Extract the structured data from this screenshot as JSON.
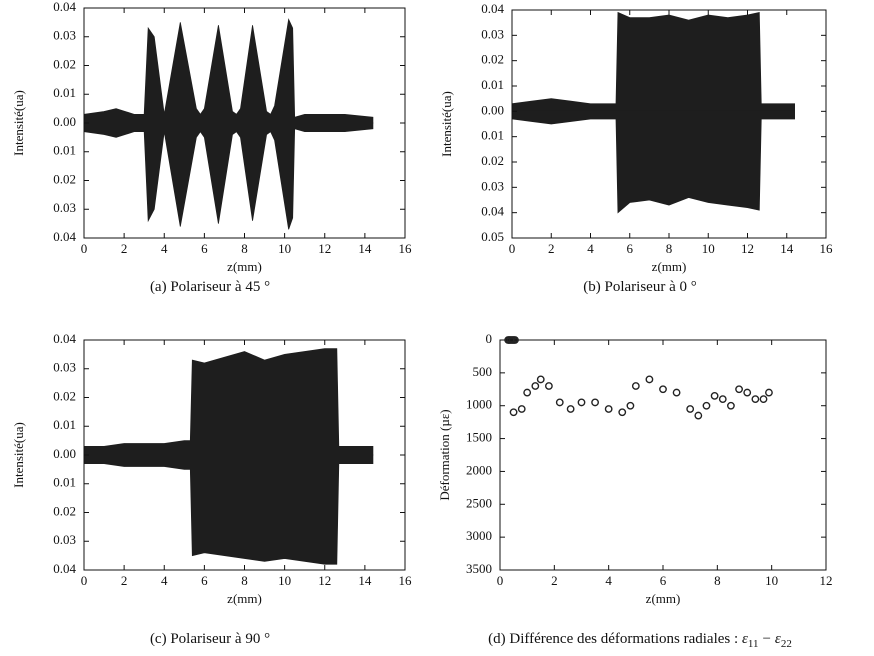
{
  "chart_data": [
    {
      "type": "area",
      "caption": "(a)  Polariseur à 45 °",
      "xlabel": "z(mm)",
      "ylabel": "Intensité(ua)",
      "xlim": [
        0,
        16
      ],
      "xticks": [
        0,
        2,
        4,
        6,
        8,
        10,
        12,
        14,
        16
      ],
      "ylim": [
        -0.04,
        0.04
      ],
      "yticks": [
        {
          "value": 0.04,
          "label": "0.04"
        },
        {
          "value": 0.03,
          "label": "0.03"
        },
        {
          "value": 0.02,
          "label": "0.02"
        },
        {
          "value": 0.01,
          "label": "0.01"
        },
        {
          "value": 0,
          "label": "0.00"
        },
        {
          "value": -0.01,
          "label": "0.01"
        },
        {
          "value": -0.02,
          "label": "0.02"
        },
        {
          "value": -0.03,
          "label": "0.03"
        },
        {
          "value": -0.04,
          "label": "0.04"
        }
      ],
      "color": "#1e1e1e",
      "x": [
        0,
        1,
        1.6,
        2.5,
        3.0,
        3.2,
        3.5,
        4.0,
        4.8,
        5.6,
        5.8,
        6.0,
        6.7,
        7.4,
        7.6,
        7.8,
        8.4,
        9.1,
        9.3,
        9.5,
        10.2,
        10.4,
        10.5,
        11,
        12,
        13,
        14.4
      ],
      "upper": [
        0.003,
        0.004,
        0.005,
        0.003,
        0.003,
        0.033,
        0.03,
        0.003,
        0.035,
        0.005,
        0.003,
        0.005,
        0.034,
        0.004,
        0.003,
        0.005,
        0.034,
        0.004,
        0.003,
        0.006,
        0.036,
        0.033,
        0.002,
        0.003,
        0.003,
        0.003,
        0.002
      ],
      "lower": [
        -0.003,
        -0.004,
        -0.005,
        -0.003,
        -0.003,
        -0.034,
        -0.03,
        -0.003,
        -0.036,
        -0.005,
        -0.003,
        -0.005,
        -0.035,
        -0.004,
        -0.003,
        -0.005,
        -0.034,
        -0.004,
        -0.003,
        -0.006,
        -0.037,
        -0.033,
        -0.002,
        -0.003,
        -0.003,
        -0.003,
        -0.002
      ]
    },
    {
      "type": "area",
      "caption": "(b)  Polariseur à 0 °",
      "xlabel": "z(mm)",
      "ylabel": "Intensité(ua)",
      "xlim": [
        0,
        16
      ],
      "xticks": [
        0,
        2,
        4,
        6,
        8,
        10,
        12,
        14,
        16
      ],
      "ylim": [
        -0.05,
        0.04
      ],
      "yticks": [
        {
          "value": 0.04,
          "label": "0.04"
        },
        {
          "value": 0.03,
          "label": "0.03"
        },
        {
          "value": 0.02,
          "label": "0.02"
        },
        {
          "value": 0.01,
          "label": "0.01"
        },
        {
          "value": 0,
          "label": "0.00"
        },
        {
          "value": -0.01,
          "label": "0.01"
        },
        {
          "value": -0.02,
          "label": "0.02"
        },
        {
          "value": -0.03,
          "label": "0.03"
        },
        {
          "value": -0.04,
          "label": "0.04"
        },
        {
          "value": -0.05,
          "label": "0.05"
        }
      ],
      "color": "#1e1e1e",
      "x": [
        0,
        1,
        2,
        3,
        4,
        5,
        5.3,
        5.4,
        6,
        7,
        8,
        9,
        10,
        11,
        12,
        12.6,
        12.7,
        13,
        14,
        14.4
      ],
      "upper": [
        0.003,
        0.004,
        0.005,
        0.004,
        0.003,
        0.003,
        0.003,
        0.039,
        0.037,
        0.037,
        0.038,
        0.036,
        0.038,
        0.037,
        0.038,
        0.039,
        0.003,
        0.003,
        0.003,
        0.003
      ],
      "lower": [
        -0.003,
        -0.004,
        -0.005,
        -0.004,
        -0.003,
        -0.003,
        -0.003,
        -0.04,
        -0.036,
        -0.035,
        -0.037,
        -0.034,
        -0.036,
        -0.037,
        -0.038,
        -0.039,
        -0.003,
        -0.003,
        -0.003,
        -0.003
      ]
    },
    {
      "type": "area",
      "caption": "(c)  Polariseur à 90 °",
      "xlabel": "z(mm)",
      "ylabel": "Intensité(ua)",
      "xlim": [
        0,
        16
      ],
      "xticks": [
        0,
        2,
        4,
        6,
        8,
        10,
        12,
        14,
        16
      ],
      "ylim": [
        -0.04,
        0.04
      ],
      "yticks": [
        {
          "value": 0.04,
          "label": "0.04"
        },
        {
          "value": 0.03,
          "label": "0.03"
        },
        {
          "value": 0.02,
          "label": "0.02"
        },
        {
          "value": 0.01,
          "label": "0.01"
        },
        {
          "value": 0,
          "label": "0.00"
        },
        {
          "value": -0.01,
          "label": "0.01"
        },
        {
          "value": -0.02,
          "label": "0.02"
        },
        {
          "value": -0.03,
          "label": "0.03"
        },
        {
          "value": -0.04,
          "label": "0.04"
        }
      ],
      "color": "#1e1e1e",
      "x": [
        0,
        1,
        2,
        3,
        4,
        5,
        5.3,
        5.4,
        6,
        7,
        8,
        9,
        10,
        11,
        12,
        12.6,
        12.7,
        13,
        14,
        14.4
      ],
      "upper": [
        0.003,
        0.003,
        0.004,
        0.004,
        0.004,
        0.005,
        0.005,
        0.033,
        0.032,
        0.034,
        0.036,
        0.033,
        0.035,
        0.036,
        0.037,
        0.037,
        0.003,
        0.003,
        0.003,
        0.003
      ],
      "lower": [
        -0.003,
        -0.003,
        -0.004,
        -0.004,
        -0.004,
        -0.005,
        -0.005,
        -0.035,
        -0.034,
        -0.035,
        -0.036,
        -0.037,
        -0.036,
        -0.037,
        -0.038,
        -0.038,
        -0.003,
        -0.003,
        -0.003,
        -0.003
      ]
    },
    {
      "type": "scatter",
      "caption": "(d) Différence des déformations radiales : ",
      "caption_math": [
        "ε",
        "11",
        "−",
        "ε",
        "22"
      ],
      "xlabel": "z(mm)",
      "ylabel": "Déformation (µε)",
      "xlim": [
        0,
        12
      ],
      "xticks": [
        0,
        2,
        4,
        6,
        8,
        10,
        12
      ],
      "ylim": [
        0,
        3500
      ],
      "y_inverted": true,
      "yticks": [
        0,
        500,
        1000,
        1500,
        2000,
        2500,
        3000,
        3500
      ],
      "color": "#222",
      "x": [
        0.3,
        0.35,
        0.4,
        0.45,
        0.5,
        0.55,
        0.5,
        0.8,
        1.0,
        1.3,
        1.5,
        1.8,
        2.2,
        2.6,
        3.0,
        3.5,
        4.0,
        4.5,
        4.8,
        5.0,
        5.5,
        6.0,
        6.5,
        7.0,
        7.3,
        7.6,
        7.9,
        8.2,
        8.5,
        8.8,
        9.1,
        9.4,
        9.7,
        9.9
      ],
      "values": [
        0,
        0,
        0,
        0,
        0,
        0,
        1100,
        1050,
        800,
        700,
        600,
        700,
        950,
        1050,
        950,
        950,
        1050,
        1100,
        1000,
        700,
        600,
        750,
        800,
        1050,
        1150,
        1000,
        850,
        900,
        1000,
        750,
        800,
        900,
        900,
        800
      ]
    }
  ]
}
